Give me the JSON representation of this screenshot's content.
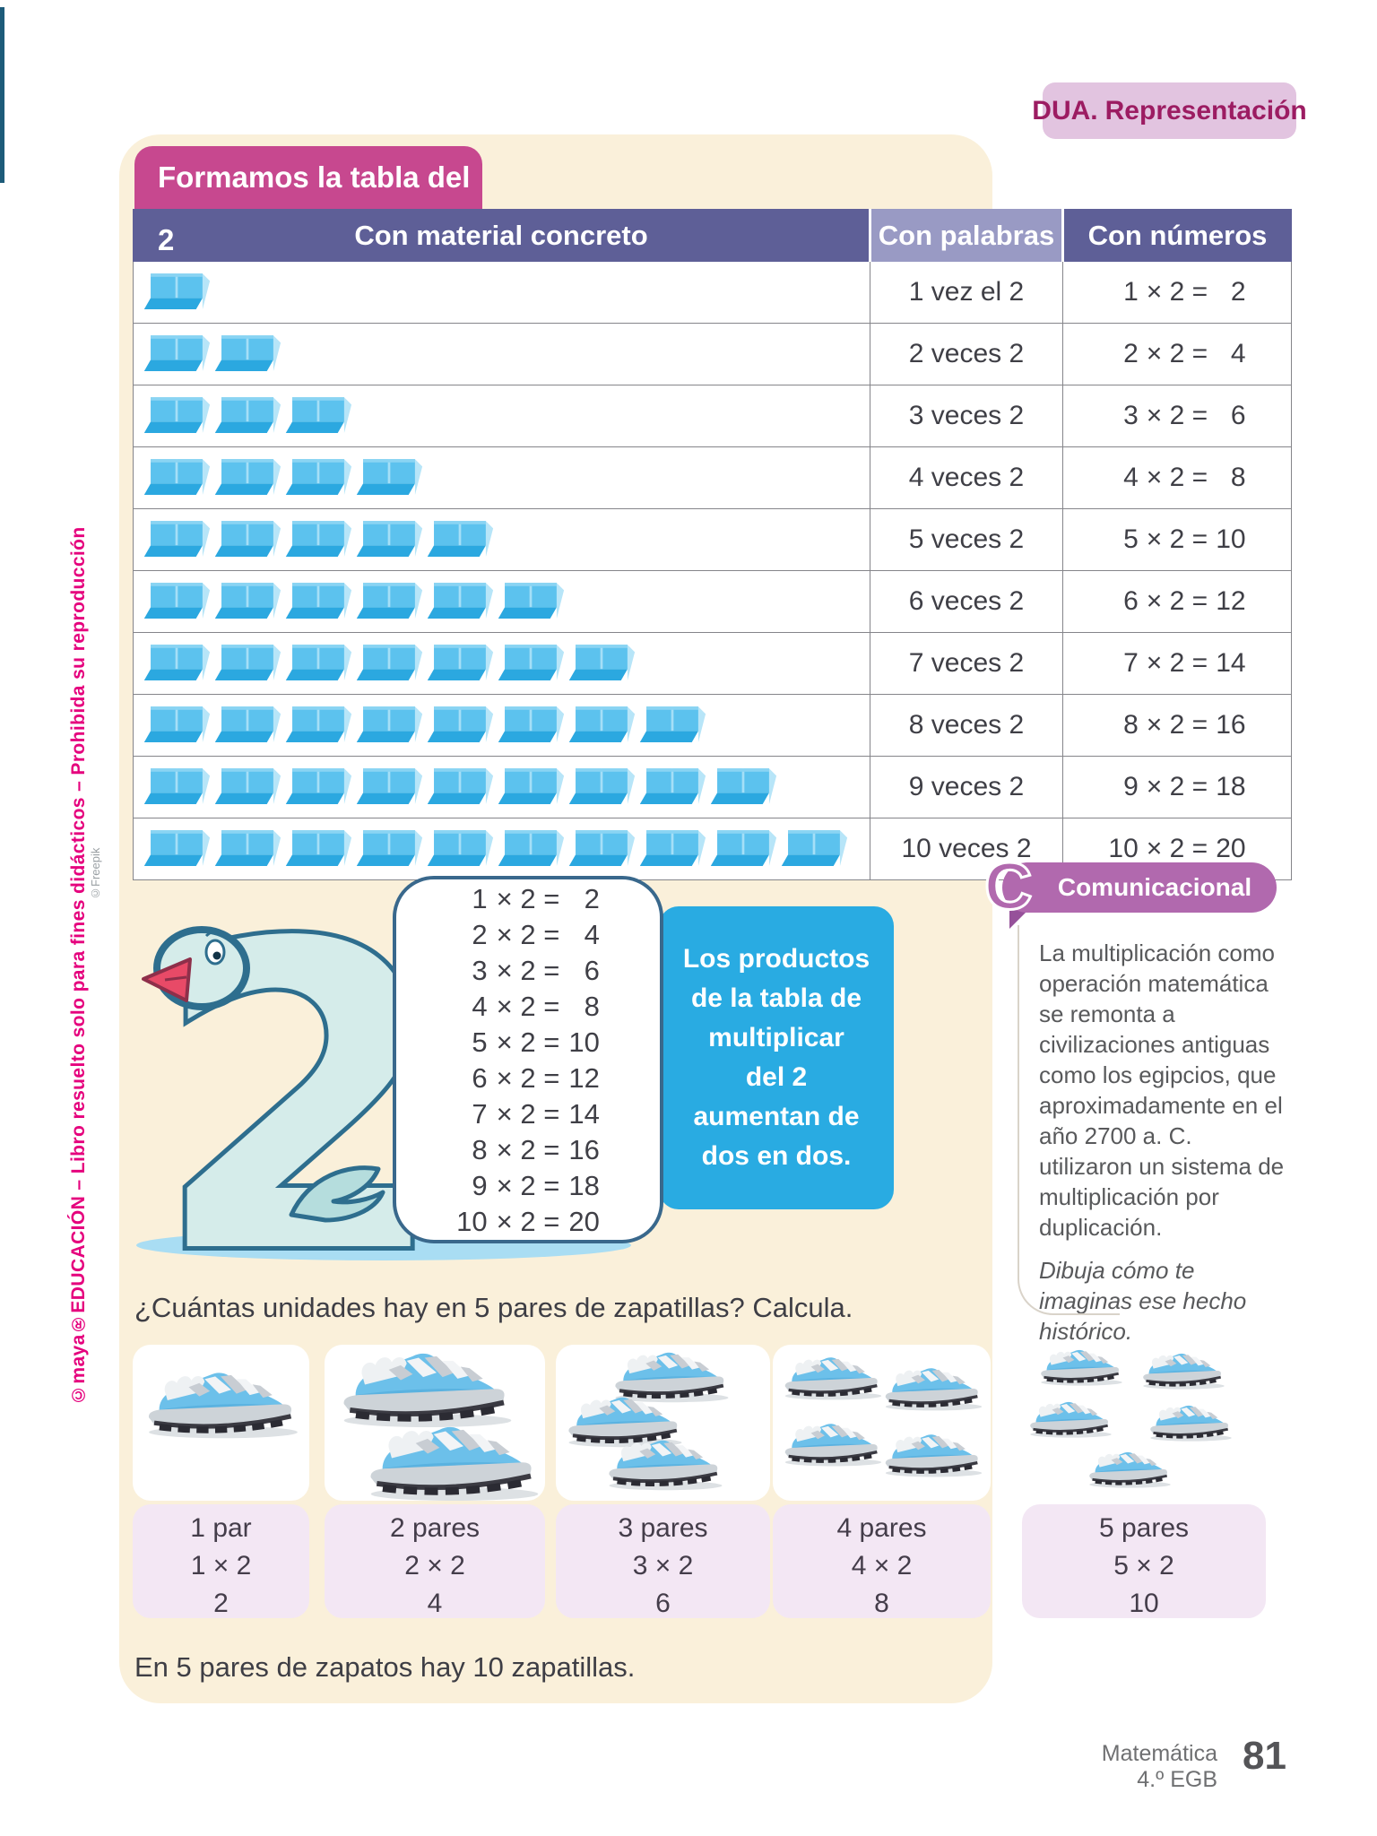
{
  "page": {
    "dua_label": "DUA.",
    "dua_title": "Representación",
    "side_brand": "©maya",
    "side_rest": "®EDUCACIÓN – Libro resuelto solo para fines didácticos – Prohibida su reproducción",
    "freepik_credit": "©Freepik",
    "footer": {
      "subject": "Matemática",
      "grade": "4.º EGB",
      "page_number": "81"
    }
  },
  "lesson": {
    "title": "Formamos la tabla del 2",
    "table": {
      "headers": [
        "Con material concreto",
        "Con palabras",
        "Con números"
      ],
      "operator": "×",
      "equals": "=",
      "rows": [
        {
          "blocks": 1,
          "words": "1 vez el 2",
          "factor": "1",
          "multiplier": "2",
          "product": "2"
        },
        {
          "blocks": 2,
          "words": "2 veces 2",
          "factor": "2",
          "multiplier": "2",
          "product": "4"
        },
        {
          "blocks": 3,
          "words": "3 veces 2",
          "factor": "3",
          "multiplier": "2",
          "product": "6"
        },
        {
          "blocks": 4,
          "words": "4 veces 2",
          "factor": "4",
          "multiplier": "2",
          "product": "8"
        },
        {
          "blocks": 5,
          "words": "5 veces 2",
          "factor": "5",
          "multiplier": "2",
          "product": "10"
        },
        {
          "blocks": 6,
          "words": "6 veces 2",
          "factor": "6",
          "multiplier": "2",
          "product": "12"
        },
        {
          "blocks": 7,
          "words": "7 veces 2",
          "factor": "7",
          "multiplier": "2",
          "product": "14"
        },
        {
          "blocks": 8,
          "words": "8 veces 2",
          "factor": "8",
          "multiplier": "2",
          "product": "16"
        },
        {
          "blocks": 9,
          "words": "9 veces 2",
          "factor": "9",
          "multiplier": "2",
          "product": "18"
        },
        {
          "blocks": 10,
          "words": "10 veces 2",
          "factor": "10",
          "multiplier": "2",
          "product": "20"
        }
      ]
    },
    "note_text": "Los productos\nde la tabla de\nmultiplicar\ndel 2\naumentan de\ndos en dos.",
    "sidebar": {
      "icon": "C",
      "title": "Comunicacional",
      "body": "La multiplicación como operación matemática se remonta a civilizaciones antiguas como los egipcios, que aproximadamente en el año 2700 a. C. utilizaron un sistema de multiplicación por duplicación.",
      "prompt": "Dibuja cómo te imaginas ese hecho histórico."
    },
    "question": "¿Cuántas unidades hay en 5 pares de zapatillas? Calcula.",
    "pairs": [
      {
        "shoes": 1,
        "label_pair": "1 par",
        "label_mult": "1 × 2",
        "label_result": "2"
      },
      {
        "shoes": 2,
        "label_pair": "2 pares",
        "label_mult": "2 × 2",
        "label_result": "4"
      },
      {
        "shoes": 3,
        "label_pair": "3 pares",
        "label_mult": "3 × 2",
        "label_result": "6"
      },
      {
        "shoes": 4,
        "label_pair": "4 pares",
        "label_mult": "4 × 2",
        "label_result": "8"
      },
      {
        "shoes": 5,
        "label_pair": "5 pares",
        "label_mult": "5 × 2",
        "label_result": "10"
      }
    ],
    "conclusion": "En 5 pares de zapatos hay 10 zapatillas."
  }
}
